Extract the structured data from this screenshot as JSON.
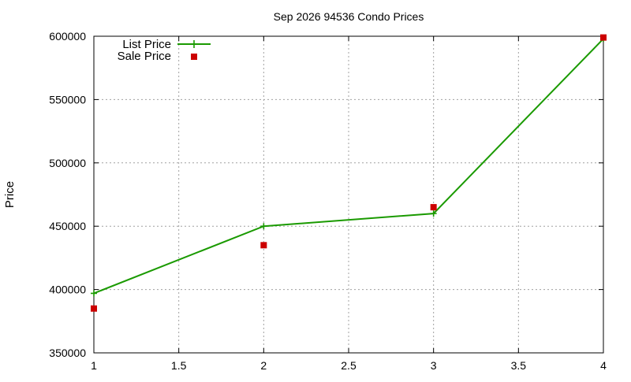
{
  "chart_data": {
    "type": "line",
    "title": "Sep 2026 94536 Condo Prices",
    "xlabel": "",
    "ylabel": "Price",
    "xlim": [
      1,
      4
    ],
    "ylim": [
      350000,
      600000
    ],
    "x_ticks": [
      "1",
      "1.5",
      "2",
      "2.5",
      "3",
      "3.5",
      "4"
    ],
    "y_ticks": [
      "350000",
      "400000",
      "450000",
      "500000",
      "550000",
      "600000"
    ],
    "grid": true,
    "legend_position": "top-left",
    "series": [
      {
        "name": "List Price",
        "style": "line-with-plus-points",
        "color": "#1a9a00",
        "points": [
          [
            1,
            397000
          ],
          [
            2,
            450000
          ],
          [
            3,
            460000
          ],
          [
            4,
            598000
          ]
        ]
      },
      {
        "name": "Sale Price",
        "style": "square-points",
        "color": "#cc0000",
        "points": [
          [
            1,
            385000
          ],
          [
            2,
            435000
          ],
          [
            3,
            465000
          ],
          [
            4,
            599000
          ]
        ]
      }
    ]
  }
}
